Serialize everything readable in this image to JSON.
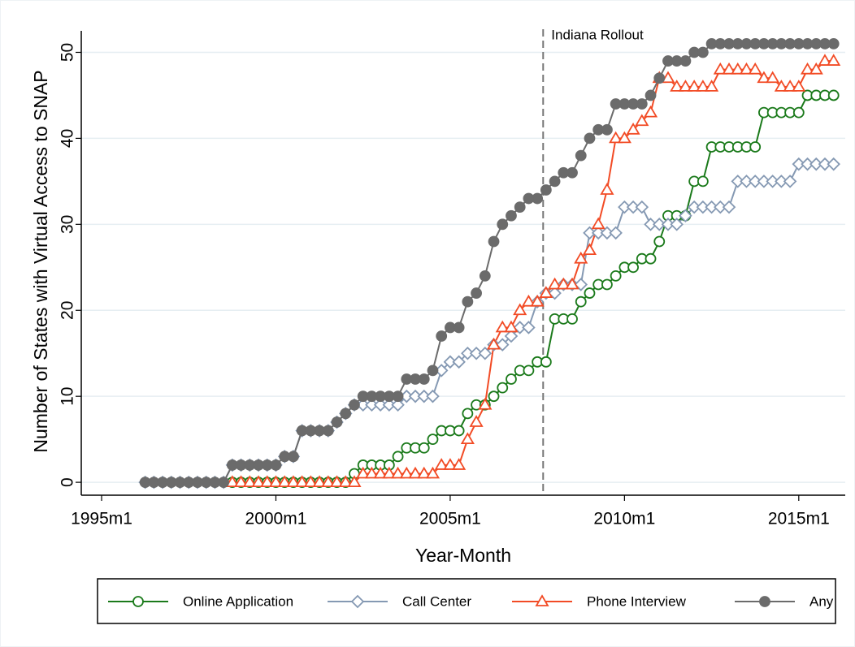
{
  "chart_data": {
    "type": "line",
    "x_label": "Year-Month",
    "y_label": "Number of States with Virtual Access to SNAP",
    "xlim": [
      413,
      676
    ],
    "ylim": [
      -1.5,
      52.5
    ],
    "xticks": [
      {
        "value": 420,
        "label": "1995m1"
      },
      {
        "value": 480,
        "label": "2000m1"
      },
      {
        "value": 540,
        "label": "2005m1"
      },
      {
        "value": 600,
        "label": "2010m1"
      },
      {
        "value": 660,
        "label": "2015m1"
      }
    ],
    "yticks": [
      0,
      10,
      20,
      30,
      40,
      50
    ],
    "grid": true,
    "legend_position": "bottom",
    "vline": {
      "x": 572,
      "label": "Indiana Rollout"
    },
    "x": [
      435,
      438,
      441,
      444,
      447,
      450,
      453,
      456,
      459,
      462,
      465,
      468,
      471,
      474,
      477,
      480,
      483,
      486,
      489,
      492,
      495,
      498,
      501,
      504,
      507,
      510,
      513,
      516,
      519,
      522,
      525,
      528,
      531,
      534,
      537,
      540,
      543,
      546,
      549,
      552,
      555,
      558,
      561,
      564,
      567,
      570,
      573,
      576,
      579,
      582,
      585,
      588,
      591,
      594,
      597,
      600,
      603,
      606,
      609,
      612,
      615,
      618,
      621,
      624,
      627,
      630,
      633,
      636,
      639,
      642,
      645,
      648,
      651,
      654,
      657,
      660,
      663,
      666,
      669,
      672
    ],
    "series": [
      {
        "name": "Online Application",
        "color": "#1b7a1b",
        "marker": "circle-open",
        "values": [
          null,
          null,
          null,
          null,
          null,
          null,
          null,
          null,
          null,
          null,
          0,
          0,
          0,
          0,
          0,
          0,
          0,
          0,
          0,
          0,
          0,
          0,
          0,
          0,
          1,
          2,
          2,
          2,
          2,
          3,
          4,
          4,
          4,
          5,
          6,
          6,
          6,
          8,
          9,
          9,
          10,
          11,
          12,
          13,
          13,
          14,
          14,
          19,
          19,
          19,
          21,
          22,
          23,
          23,
          24,
          25,
          25,
          26,
          26,
          28,
          31,
          31,
          31,
          35,
          35,
          39,
          39,
          39,
          39,
          39,
          39,
          43,
          43,
          43,
          43,
          43,
          45,
          45,
          45,
          45
        ]
      },
      {
        "name": "Call Center",
        "color": "#8599b3",
        "marker": "diamond-open",
        "values": [
          0,
          0,
          0,
          0,
          0,
          0,
          0,
          0,
          0,
          0,
          2,
          2,
          2,
          2,
          2,
          2,
          3,
          3,
          6,
          6,
          6,
          6,
          7,
          8,
          9,
          9,
          9,
          9,
          9,
          9,
          10,
          10,
          10,
          10,
          13,
          14,
          14,
          15,
          15,
          15,
          16,
          16,
          17,
          18,
          18,
          21,
          22,
          22,
          23,
          23,
          23,
          29,
          29,
          29,
          29,
          32,
          32,
          32,
          30,
          30,
          30,
          30,
          31,
          32,
          32,
          32,
          32,
          32,
          35,
          35,
          35,
          35,
          35,
          35,
          35,
          37,
          37,
          37,
          37,
          37
        ]
      },
      {
        "name": "Phone Interview",
        "color": "#f24b25",
        "marker": "triangle-open",
        "values": [
          null,
          null,
          null,
          null,
          null,
          null,
          null,
          null,
          null,
          null,
          0,
          0,
          0,
          0,
          0,
          0,
          0,
          0,
          0,
          0,
          0,
          0,
          0,
          0,
          0,
          1,
          1,
          1,
          1,
          1,
          1,
          1,
          1,
          1,
          2,
          2,
          2,
          5,
          7,
          9,
          16,
          18,
          18,
          20,
          21,
          21,
          22,
          23,
          23,
          23,
          26,
          27,
          30,
          34,
          40,
          40,
          41,
          42,
          43,
          47,
          47,
          46,
          46,
          46,
          46,
          46,
          48,
          48,
          48,
          48,
          48,
          47,
          47,
          46,
          46,
          46,
          48,
          48,
          49,
          49
        ]
      },
      {
        "name": "Any",
        "color": "#6b6b6b",
        "marker": "circle",
        "values": [
          0,
          0,
          0,
          0,
          0,
          0,
          0,
          0,
          0,
          0,
          2,
          2,
          2,
          2,
          2,
          2,
          3,
          3,
          6,
          6,
          6,
          6,
          7,
          8,
          9,
          10,
          10,
          10,
          10,
          10,
          12,
          12,
          12,
          13,
          17,
          18,
          18,
          21,
          22,
          24,
          28,
          30,
          31,
          32,
          33,
          33,
          34,
          35,
          36,
          36,
          38,
          40,
          41,
          41,
          44,
          44,
          44,
          44,
          45,
          47,
          49,
          49,
          49,
          50,
          50,
          51,
          51,
          51,
          51,
          51,
          51,
          51,
          51,
          51,
          51,
          51,
          51,
          51,
          51,
          51
        ]
      }
    ]
  }
}
